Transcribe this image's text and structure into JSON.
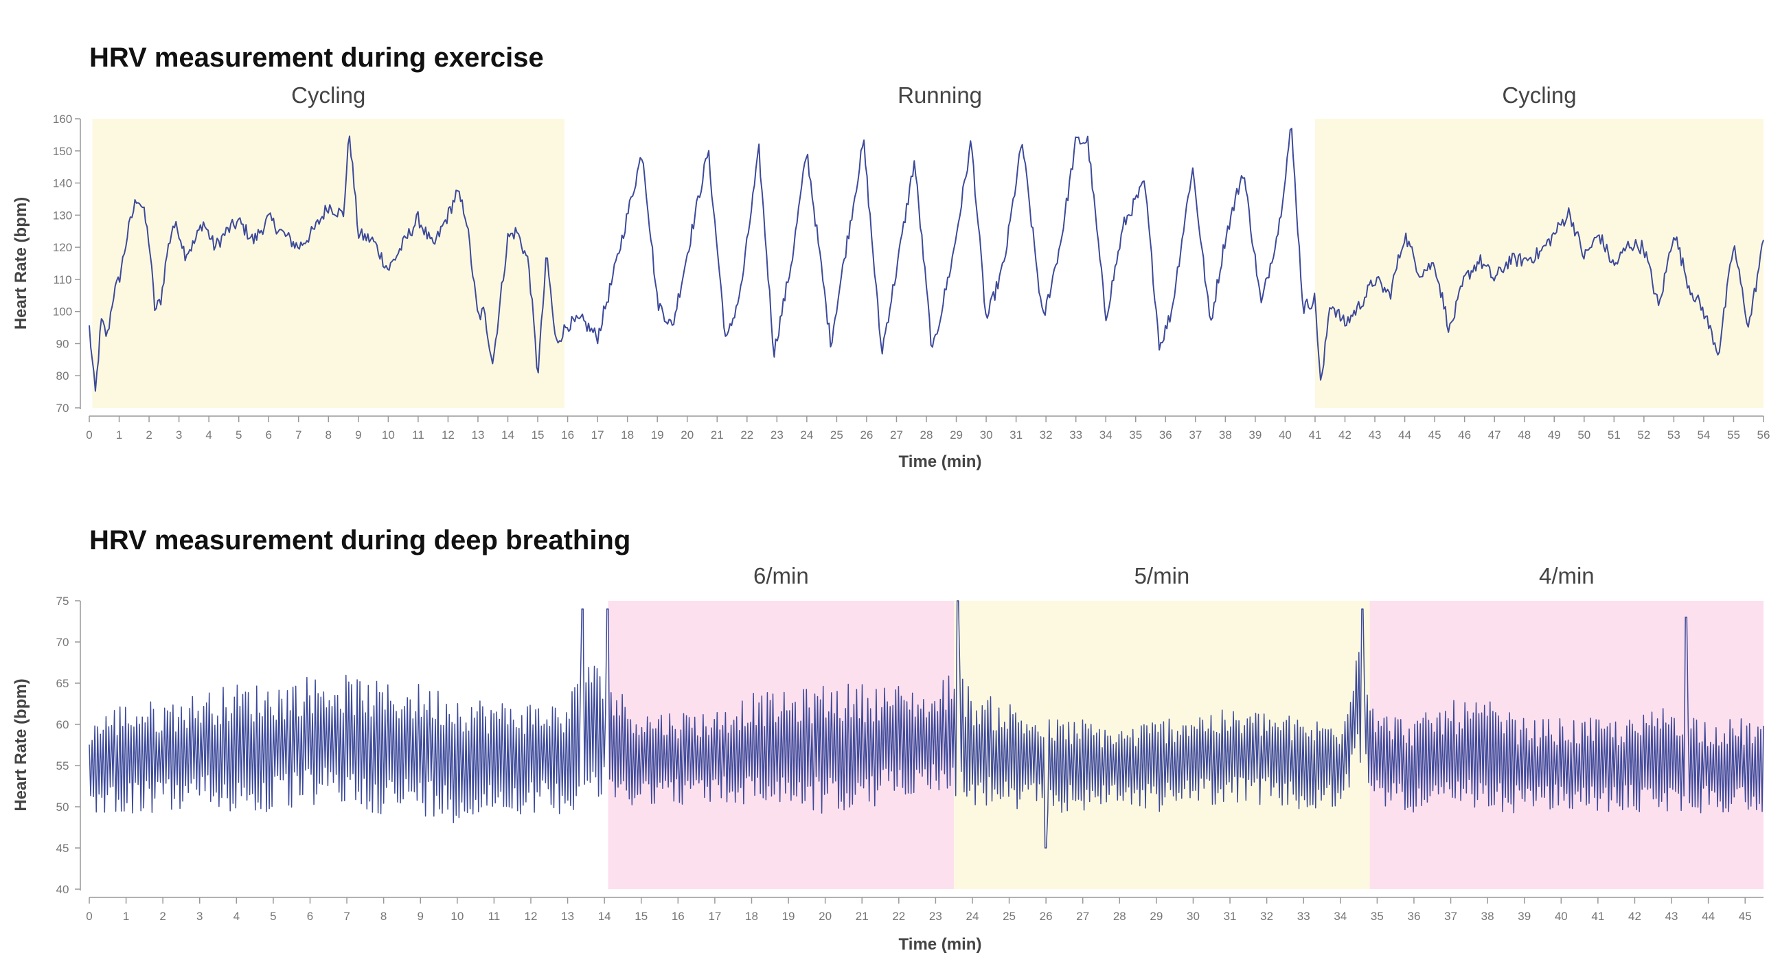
{
  "chart_data": [
    {
      "type": "line",
      "title": "HRV measurement during exercise",
      "xlabel": "Time (min)",
      "ylabel": "Heart Rate (bpm)",
      "xlim": [
        0,
        56
      ],
      "ylim": [
        70,
        160
      ],
      "xticks": [
        0,
        1,
        2,
        3,
        4,
        5,
        6,
        7,
        8,
        9,
        10,
        11,
        12,
        13,
        14,
        15,
        16,
        17,
        18,
        19,
        20,
        21,
        22,
        23,
        24,
        25,
        26,
        27,
        28,
        29,
        30,
        31,
        32,
        33,
        34,
        35,
        36,
        37,
        38,
        39,
        40,
        41,
        42,
        43,
        44,
        45,
        46,
        47,
        48,
        49,
        50,
        51,
        52,
        53,
        54,
        55,
        56
      ],
      "yticks": [
        70,
        80,
        90,
        100,
        110,
        120,
        130,
        140,
        150,
        160
      ],
      "grid": false,
      "line_color": "#3d4a9a",
      "regions": [
        {
          "label": "Cycling",
          "start": 0.1,
          "end": 15.9,
          "color": "#fdf9e1"
        },
        {
          "label": "Running",
          "start": 15.9,
          "end": 41.0,
          "color": "#ffffff"
        },
        {
          "label": "Cycling",
          "start": 41.0,
          "end": 56.0,
          "color": "#fdf9e1"
        }
      ],
      "series": [
        {
          "x": [
            0,
            0.2,
            0.4,
            0.6,
            0.8,
            1.0,
            1.3,
            1.6,
            1.8,
            2.0,
            2.2,
            2.4,
            2.6,
            2.8,
            3.0,
            3.2,
            3.5,
            3.8,
            4.2,
            4.6,
            5.0,
            5.5,
            6.0,
            6.5,
            7.0,
            7.5,
            8.0,
            8.5,
            8.7,
            9.0,
            9.5,
            10.0,
            10.5,
            11.0,
            11.5,
            12.0,
            12.3,
            12.6,
            13.0,
            13.2,
            13.5,
            14.0,
            14.3,
            14.7,
            15.0,
            15.3,
            15.6,
            16.0,
            16.5,
            17.0,
            17.5,
            18.0,
            18.5,
            19.0,
            19.5,
            20.0,
            20.7,
            21.3,
            21.8,
            22.4,
            22.9,
            23.5,
            24.0,
            24.8,
            25.3,
            25.9,
            26.5,
            27.0,
            27.6,
            28.2,
            28.9,
            29.5,
            30.0,
            30.6,
            31.2,
            31.9,
            32.5,
            33.0,
            33.4,
            34.0,
            34.6,
            35.3,
            35.8,
            36.2,
            36.9,
            37.5,
            38.0,
            38.6,
            39.2,
            39.8,
            40.2,
            40.6,
            41.0,
            41.2,
            41.5,
            42.0,
            42.5,
            43.0,
            43.5,
            44.0,
            44.5,
            45.0,
            45.5,
            46.0,
            46.5,
            47.0,
            47.5,
            48.0,
            48.5,
            49.0,
            49.5,
            50.0,
            50.5,
            51.0,
            51.5,
            52.0,
            52.5,
            53.0,
            53.5,
            54.0,
            54.5,
            55.0,
            55.5,
            56.0
          ],
          "values": [
            95,
            74,
            97,
            92,
            105,
            110,
            125,
            136,
            132,
            122,
            100,
            104,
            118,
            127,
            125,
            118,
            121,
            128,
            120,
            125,
            128,
            122,
            129,
            124,
            120,
            125,
            133,
            130,
            156,
            124,
            122,
            113,
            121,
            129,
            120,
            130,
            137,
            130,
            98,
            100,
            84,
            123,
            125,
            115,
            80,
            118,
            90,
            96,
            97,
            92,
            110,
            130,
            150,
            103,
            95,
            118,
            150,
            90,
            107,
            150,
            87,
            116,
            150,
            90,
            119,
            153,
            87,
            113,
            147,
            87,
            118,
            153,
            97,
            115,
            153,
            97,
            122,
            153,
            153,
            98,
            127,
            140,
            89,
            100,
            145,
            96,
            123,
            144,
            102,
            127,
            158,
            101,
            104,
            76,
            103,
            96,
            102,
            110,
            105,
            124,
            112,
            115,
            94,
            110,
            116,
            110,
            116,
            116,
            118,
            124,
            131,
            117,
            124,
            114,
            121,
            120,
            101,
            125,
            108,
            100,
            87,
            121,
            95,
            122
          ],
          "points": 1100
        }
      ]
    },
    {
      "type": "line",
      "title": "HRV measurement during deep breathing",
      "xlabel": "Time (min)",
      "ylabel": "Heart Rate (bpm)",
      "xlim": [
        0,
        45.5
      ],
      "ylim": [
        40,
        75
      ],
      "xticks": [
        0,
        1,
        2,
        3,
        4,
        5,
        6,
        7,
        8,
        9,
        10,
        11,
        12,
        13,
        14,
        15,
        16,
        17,
        18,
        19,
        20,
        21,
        22,
        23,
        24,
        25,
        26,
        27,
        28,
        29,
        30,
        31,
        32,
        33,
        34,
        35,
        36,
        37,
        38,
        39,
        40,
        41,
        42,
        43,
        44,
        45
      ],
      "yticks": [
        40,
        45,
        50,
        55,
        60,
        65,
        70,
        75
      ],
      "grid": false,
      "line_color": "#3d4a9a",
      "regions": [
        {
          "label": "6/min",
          "start": 14.1,
          "end": 23.5,
          "color": "#fde0ee"
        },
        {
          "label": "5/min",
          "start": 23.5,
          "end": 34.8,
          "color": "#fdf9e1"
        },
        {
          "label": "4/min",
          "start": 34.8,
          "end": 45.5,
          "color": "#fde0ee"
        }
      ],
      "series": [
        {
          "x": [
            0,
            1,
            2,
            3,
            4,
            5,
            6,
            7,
            8,
            9,
            10,
            11,
            12,
            13,
            13.5,
            14,
            14.5,
            15,
            16,
            17,
            18,
            19,
            20,
            21,
            22,
            23,
            23.5,
            24,
            25,
            26,
            27,
            28,
            29,
            30,
            31,
            32,
            33,
            34,
            34.5,
            35,
            36,
            37,
            38,
            39,
            40,
            41,
            42,
            43,
            44,
            45,
            45.5
          ],
          "values_center": [
            55,
            56,
            56,
            57,
            57,
            57,
            58,
            58,
            57,
            57,
            56,
            56,
            56,
            56,
            60,
            58,
            57,
            56,
            56,
            56,
            57,
            57,
            57,
            57,
            58,
            58,
            59,
            57,
            56,
            55,
            55,
            55,
            55,
            56,
            56,
            56,
            55,
            55,
            63,
            56,
            55,
            56,
            56,
            55,
            55,
            55,
            55,
            56,
            55,
            55,
            55
          ],
          "amplitude": [
            5,
            6,
            6,
            6,
            7,
            7,
            7,
            7,
            7,
            7,
            7,
            6,
            6,
            6,
            8,
            7,
            6,
            5,
            5,
            5,
            6,
            6,
            7,
            7,
            6,
            5,
            8,
            6,
            6,
            5,
            5,
            4,
            5,
            5,
            5,
            5,
            5,
            5,
            7,
            5,
            5,
            6,
            6,
            5,
            5,
            5,
            5,
            6,
            5,
            5,
            5
          ],
          "events": [
            {
              "x": 13.4,
              "y": 74
            },
            {
              "x": 14.1,
              "y": 74
            },
            {
              "x": 23.6,
              "y": 75
            },
            {
              "x": 26.0,
              "y": 45
            },
            {
              "x": 34.6,
              "y": 74
            },
            {
              "x": 43.4,
              "y": 73
            }
          ],
          "points": 1200
        }
      ]
    }
  ]
}
